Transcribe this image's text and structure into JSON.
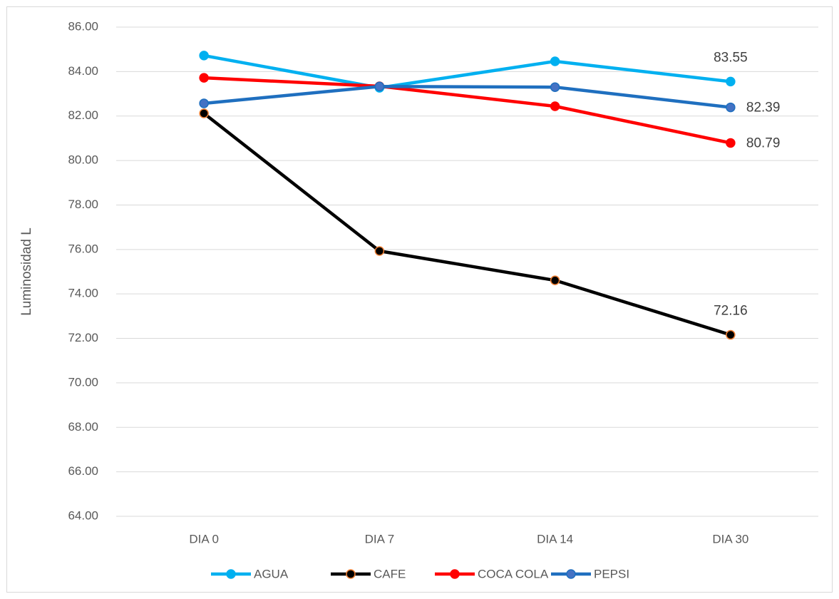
{
  "chart_data": {
    "type": "line",
    "y_label": "Luminosidad L",
    "categories": [
      "DIA 0",
      "DIA 7",
      "DIA 14",
      "DIA 30"
    ],
    "series": [
      {
        "name": "AGUA",
        "color": "#00b0f0",
        "marker_edge": "#00b0f0",
        "values": [
          84.72,
          83.27,
          84.46,
          83.55
        ],
        "value_labels": [
          null,
          null,
          null,
          "83.55"
        ],
        "label_position": "above"
      },
      {
        "name": "CAFE",
        "color": "#000000",
        "marker_edge": "#ed7d31",
        "values": [
          82.12,
          75.93,
          74.61,
          72.16
        ],
        "value_labels": [
          null,
          null,
          null,
          "72.16"
        ],
        "label_position": "above"
      },
      {
        "name": "COCA COLA",
        "color": "#ff0000",
        "marker_edge": "#ff0000",
        "values": [
          83.72,
          83.34,
          82.44,
          80.79
        ],
        "value_labels": [
          null,
          null,
          null,
          "80.79"
        ],
        "label_position": "right"
      },
      {
        "name": "PEPSI",
        "color": "#1f6fbf",
        "marker_edge": "#1f6fbf",
        "marker_fill": "#4472c4",
        "values": [
          82.57,
          83.33,
          83.3,
          82.39
        ],
        "value_labels": [
          null,
          null,
          null,
          "82.39"
        ],
        "label_position": "right"
      }
    ],
    "ylim": [
      64,
      86
    ],
    "yticks": [
      {
        "value": 64,
        "label": "64.00"
      },
      {
        "value": 66,
        "label": "66.00"
      },
      {
        "value": 68,
        "label": "68.00"
      },
      {
        "value": 70,
        "label": "70.00"
      },
      {
        "value": 72,
        "label": "72.00"
      },
      {
        "value": 74,
        "label": "74.00"
      },
      {
        "value": 76,
        "label": "76.00"
      },
      {
        "value": 78,
        "label": "78.00"
      },
      {
        "value": 80,
        "label": "80.00"
      },
      {
        "value": 82,
        "label": "82.00"
      },
      {
        "value": 84,
        "label": "84.00"
      },
      {
        "value": 86,
        "label": "86.00"
      }
    ],
    "grid": true,
    "legend": "bottom"
  }
}
